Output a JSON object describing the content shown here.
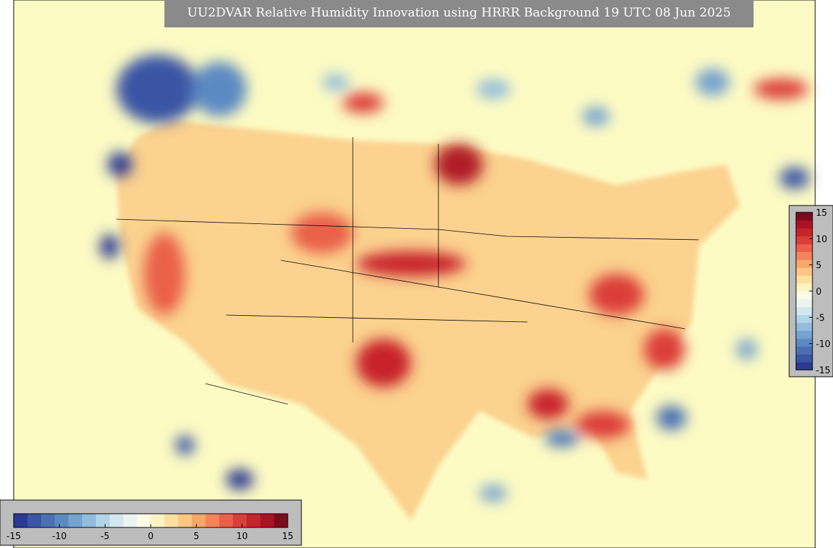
{
  "title": "UU2DVAR Relative Humidity Innovation using HRRR Background 19 UTC 08 Jun 2025",
  "colorbar": {
    "lim": [
      -15,
      15
    ],
    "ticks": [
      -15,
      -10,
      -5,
      0,
      5,
      10,
      15
    ],
    "colors": [
      "#2b3990",
      "#3a55a4",
      "#4a6fb3",
      "#5b89c2",
      "#74a3d0",
      "#92bcdc",
      "#b2d4e7",
      "#d2e7f0",
      "#ebf4f2",
      "#fbfbe6",
      "#fdf3c2",
      "#fde0a0",
      "#fcc583",
      "#f9a66a",
      "#f4845a",
      "#ea6049",
      "#db3d38",
      "#c8222b",
      "#ac1224",
      "#7a0c1e"
    ]
  }
}
